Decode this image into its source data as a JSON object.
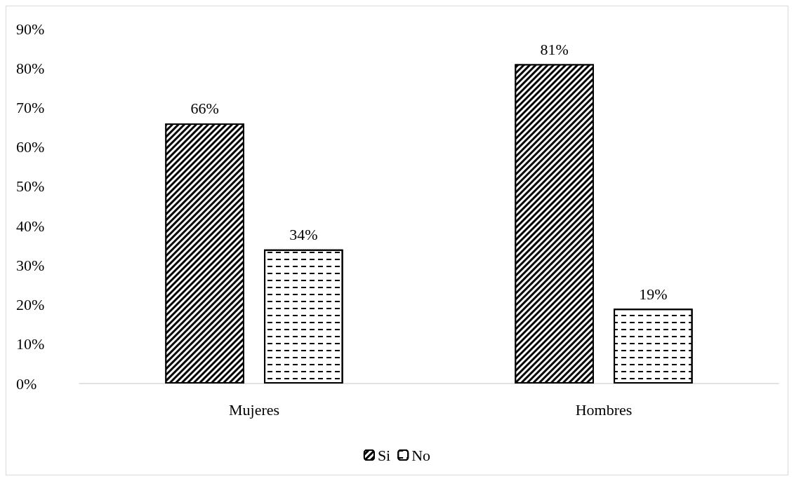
{
  "chart_data": {
    "type": "bar",
    "categories": [
      "Mujeres",
      "Hombres"
    ],
    "series": [
      {
        "name": "Si",
        "color": "#000000",
        "values": [
          66,
          81
        ],
        "value_labels": [
          "66%",
          "81%"
        ]
      },
      {
        "name": "No",
        "color": "#ffffff",
        "values": [
          34,
          19
        ],
        "value_labels": [
          "34%",
          "19%"
        ]
      }
    ],
    "ylim": [
      0,
      90
    ],
    "yticks": [
      {
        "value": 0,
        "label": "0%"
      },
      {
        "value": 10,
        "label": "10%"
      },
      {
        "value": 20,
        "label": "20%"
      },
      {
        "value": 30,
        "label": "30%"
      },
      {
        "value": 40,
        "label": "40%"
      },
      {
        "value": 50,
        "label": "50%"
      },
      {
        "value": 60,
        "label": "60%"
      },
      {
        "value": 70,
        "label": "70%"
      },
      {
        "value": 80,
        "label": "80%"
      },
      {
        "value": 90,
        "label": "90%"
      }
    ],
    "grid": false,
    "legend": "bottom"
  }
}
